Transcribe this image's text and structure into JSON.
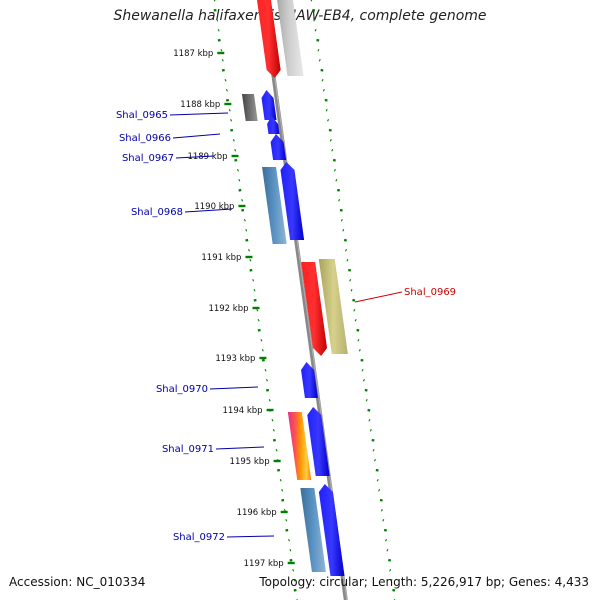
{
  "title": "Shewanella halifaxensis HAW-EB4, complete genome",
  "footer": {
    "accession": "Accession: NC_010334",
    "topology": "Topology: circular; Length: 5,226,917 bp; Genes: 4,433"
  },
  "ticks": [
    "1187 kbp",
    "1188 kbp",
    "1189 kbp",
    "1190 kbp",
    "1191 kbp",
    "1192 kbp",
    "1193 kbp",
    "1194 kbp",
    "1195 kbp",
    "1196 kbp",
    "1197 kbp"
  ],
  "genes": [
    {
      "label": "Shal_0965",
      "strand": "forward"
    },
    {
      "label": "Shal_0966",
      "strand": "forward"
    },
    {
      "label": "Shal_0967",
      "strand": "forward"
    },
    {
      "label": "Shal_0968",
      "strand": "forward"
    },
    {
      "label": "Shal_0969",
      "strand": "reverse"
    },
    {
      "label": "Shal_0970",
      "strand": "forward"
    },
    {
      "label": "Shal_0971",
      "strand": "forward"
    },
    {
      "label": "Shal_0972",
      "strand": "forward"
    }
  ],
  "colors": {
    "forward_cds": "#0000ff",
    "reverse_cds": "#ff0000",
    "forward_label": "#0000aa",
    "reverse_label": "#cc0000",
    "gc_skew": "#008000",
    "backbone": "#888888",
    "cog_slate": "#4682b4",
    "cog_khaki": "#bdb76b",
    "cog_gray": "#c0c0c0",
    "cog_dark": "#555555",
    "cog_magenta": "#e0308a",
    "cog_orange": "#ff9900"
  }
}
